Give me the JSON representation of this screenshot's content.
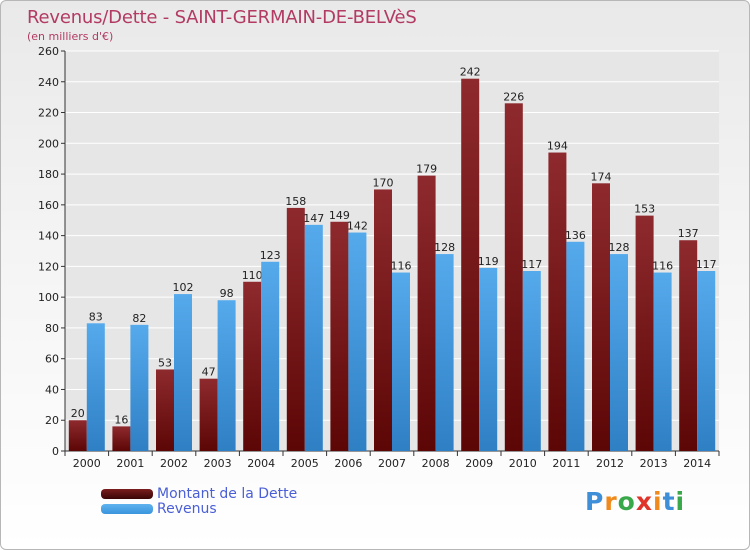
{
  "header": {
    "title": "Revenus/Dette - SAINT-GERMAIN-DE-BELVèS",
    "subtitle": "(en milliers d'€)"
  },
  "legend": {
    "items": [
      {
        "label": "Montant de la Dette",
        "color": "#7a1e1e"
      },
      {
        "label": "Revenus",
        "color": "#3a95dd"
      }
    ]
  },
  "logo": {
    "text": "Proxiti",
    "letter_colors": [
      "#3f8fd8",
      "#f08a1c",
      "#39a84a",
      "#e0342a",
      "#f08a1c",
      "#3f8fd8",
      "#39a84a"
    ]
  },
  "colors": {
    "dette": "#7a1e1e",
    "revenus": "#3a95dd",
    "grid": "#ffffff",
    "axis_text": "#222222"
  },
  "chart_data": {
    "type": "bar",
    "title": "Revenus/Dette - SAINT-GERMAIN-DE-BELVèS",
    "subtitle": "(en milliers d'€)",
    "xlabel": "",
    "ylabel": "",
    "ylim": [
      0,
      260
    ],
    "yticks": [
      0,
      20,
      40,
      60,
      80,
      100,
      120,
      140,
      160,
      180,
      200,
      220,
      240,
      260
    ],
    "grid": true,
    "legend_position": "bottom-left",
    "categories": [
      "2000",
      "2001",
      "2002",
      "2003",
      "2004",
      "2005",
      "2006",
      "2007",
      "2008",
      "2009",
      "2010",
      "2011",
      "2012",
      "2013",
      "2014"
    ],
    "series": [
      {
        "name": "Montant de la Dette",
        "values": [
          20,
          16,
          53,
          47,
          110,
          158,
          149,
          170,
          179,
          242,
          226,
          194,
          174,
          153,
          137
        ]
      },
      {
        "name": "Revenus",
        "values": [
          83,
          82,
          102,
          98,
          123,
          147,
          142,
          116,
          128,
          119,
          117,
          136,
          128,
          116,
          117
        ]
      }
    ]
  }
}
